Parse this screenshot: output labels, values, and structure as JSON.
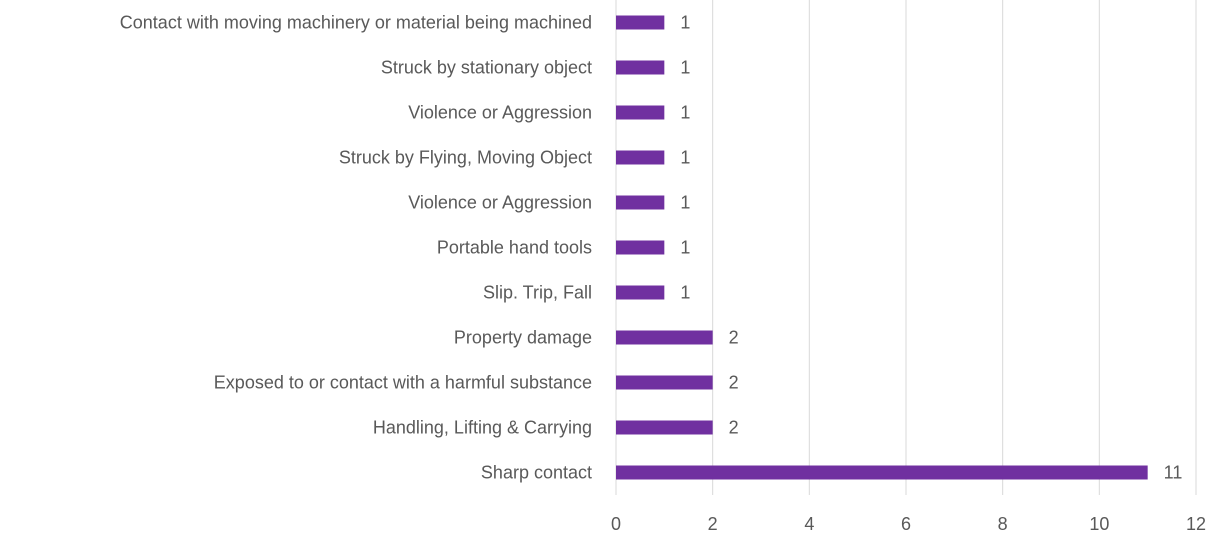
{
  "chart_data": {
    "type": "bar",
    "orientation": "horizontal",
    "categories": [
      "Contact with moving machinery or material being machined",
      "Struck by stationary object",
      "Violence or Aggression",
      "Struck by Flying, Moving Object",
      "Violence or Aggression",
      "Portable hand tools",
      "Slip. Trip, Fall",
      "Property damage",
      "Exposed to or contact with a harmful substance",
      "Handling, Lifting & Carrying",
      "Sharp contact"
    ],
    "values": [
      1,
      1,
      1,
      1,
      1,
      1,
      1,
      2,
      2,
      2,
      11
    ],
    "color": "#7030a0",
    "xlim": [
      0,
      12
    ],
    "xticks": [
      0,
      2,
      4,
      6,
      8,
      10,
      12
    ],
    "grid": true
  }
}
